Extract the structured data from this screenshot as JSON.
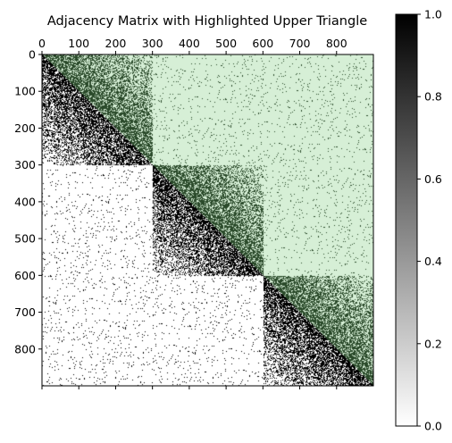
{
  "chart_data": {
    "type": "heatmap",
    "title": "Adjacency Matrix with Highlighted Upper Triangle",
    "xlabel": "",
    "ylabel": "",
    "matrix_size": 900,
    "xlim": [
      0,
      900
    ],
    "ylim": [
      900,
      0
    ],
    "x_ticks": [
      0,
      100,
      200,
      300,
      400,
      500,
      600,
      700,
      800
    ],
    "y_ticks": [
      0,
      100,
      200,
      300,
      400,
      500,
      600,
      700,
      800
    ],
    "x_axis_position": "top",
    "grid": false,
    "blocks": [
      {
        "start": 0,
        "end": 300
      },
      {
        "start": 300,
        "end": 600
      },
      {
        "start": 600,
        "end": 900
      }
    ],
    "within_block_density_near_diagonal": 0.75,
    "within_block_density_far_from_diagonal": 0.15,
    "between_block_density": 0.03,
    "upper_triangle_highlight_color": "#d6efd6",
    "colormap": "gray_r",
    "colorbar": {
      "range": [
        0.0,
        1.0
      ],
      "ticks": [
        "0.0",
        "0.2",
        "0.4",
        "0.6",
        "0.8",
        "1.0"
      ],
      "position": "right"
    }
  }
}
